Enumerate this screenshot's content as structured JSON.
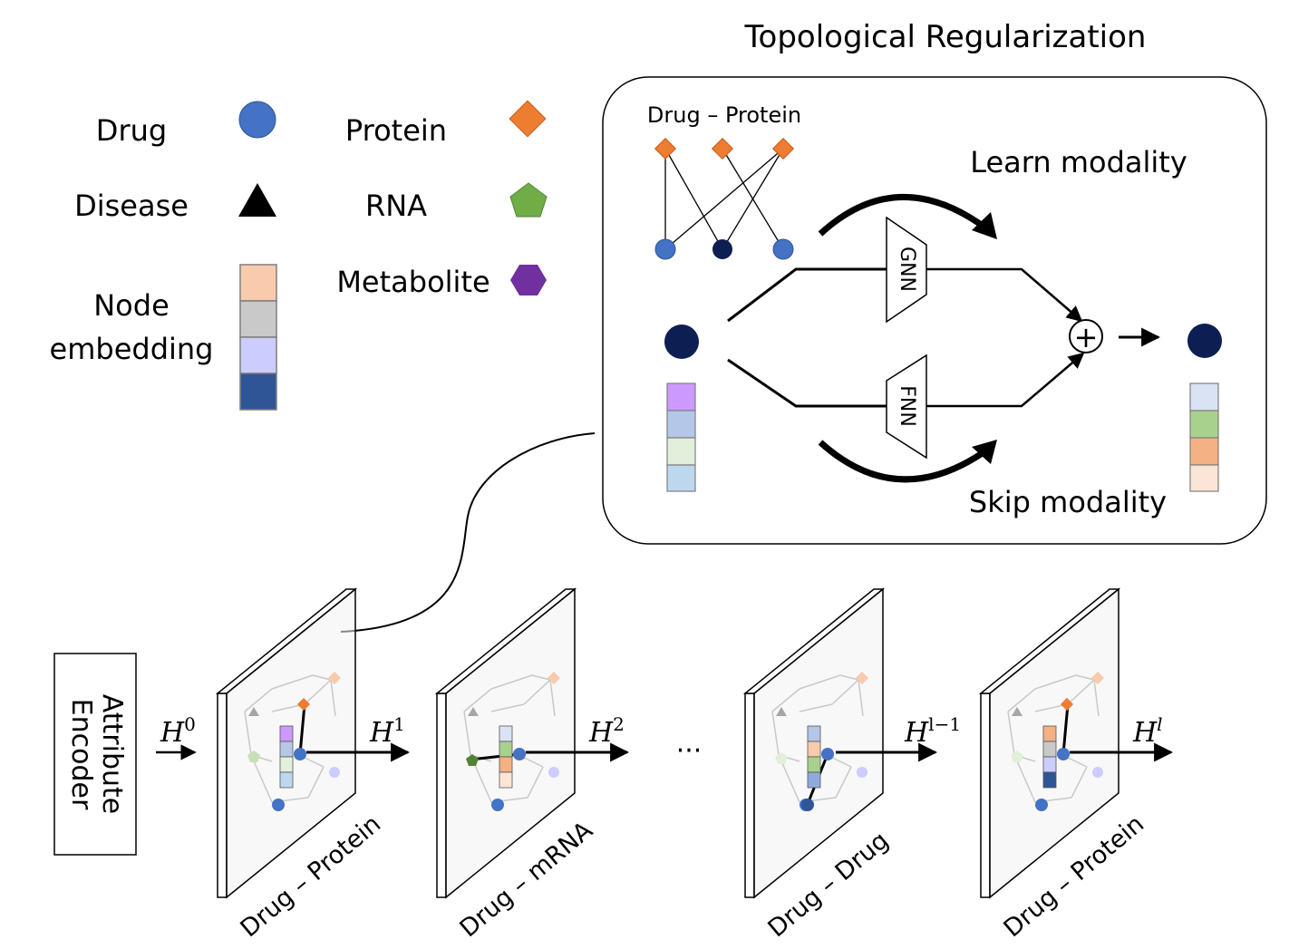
{
  "title": "Topological Regularization",
  "legend": {
    "drug": {
      "label": "Drug",
      "color": "#4472c4",
      "icon": "circle"
    },
    "protein": {
      "label": "Protein",
      "color": "#ed7d31",
      "icon": "diamond"
    },
    "disease": {
      "label": "Disease",
      "color": "#000000",
      "icon": "triangle"
    },
    "rna": {
      "label": "RNA",
      "color": "#70ad47",
      "icon": "pentagon"
    },
    "metabolite": {
      "label": "Metabolite",
      "color": "#7030a0",
      "icon": "hexagon"
    },
    "node_embedding": {
      "line1": "Node",
      "line2": "embedding",
      "colors": [
        "#f8cbad",
        "#c9c9c9",
        "#ccccff",
        "#2f5597"
      ]
    }
  },
  "inset": {
    "pair_label": "Drug – Protein",
    "learn_label": "Learn modality",
    "skip_label": "Skip modality",
    "gnn_label": "GNN",
    "fnn_label": "FNN",
    "plus_symbol": "+",
    "node_color": "#0d1e52",
    "input_embedding": [
      "#cc99ff",
      "#b4c7e7",
      "#e2efda",
      "#bdd7ee"
    ],
    "output_embedding": [
      "#dae3f3",
      "#a9d18e",
      "#f4b183",
      "#fbe5d6"
    ]
  },
  "encoder": {
    "line1": "Attribute",
    "line2": "Encoder"
  },
  "ellipsis": "···",
  "layers": [
    {
      "label": "Drug – Protein",
      "h_base": "H",
      "h_sup": "0",
      "embedding": [
        "#cc99ff",
        "#b4c7e7",
        "#e2efda",
        "#bdd7ee"
      ],
      "left_color": "#70ad47"
    },
    {
      "label": "Drug – mRNA",
      "h_base": "H",
      "h_sup": "1",
      "embedding": [
        "#dae3f3",
        "#a9d18e",
        "#f4b183",
        "#fbe5d6"
      ],
      "left_color": "#548235"
    },
    {
      "label": "Drug – Drug",
      "h_base": "H",
      "h_sup": "2",
      "embedding": [
        "#b4c7e7",
        "#f8cbad",
        "#a9d18e",
        "#8faadc"
      ],
      "left_color": "#e2f0d9"
    },
    {
      "label": "Drug – Protein",
      "h_base": "H",
      "h_sup": "l−1",
      "embedding": [
        "#f4b183",
        "#c9c9c9",
        "#ccccff",
        "#2f5597"
      ],
      "left_color": "#e2f0d9"
    }
  ],
  "final_output": {
    "h_base": "H",
    "h_sup": "l"
  }
}
